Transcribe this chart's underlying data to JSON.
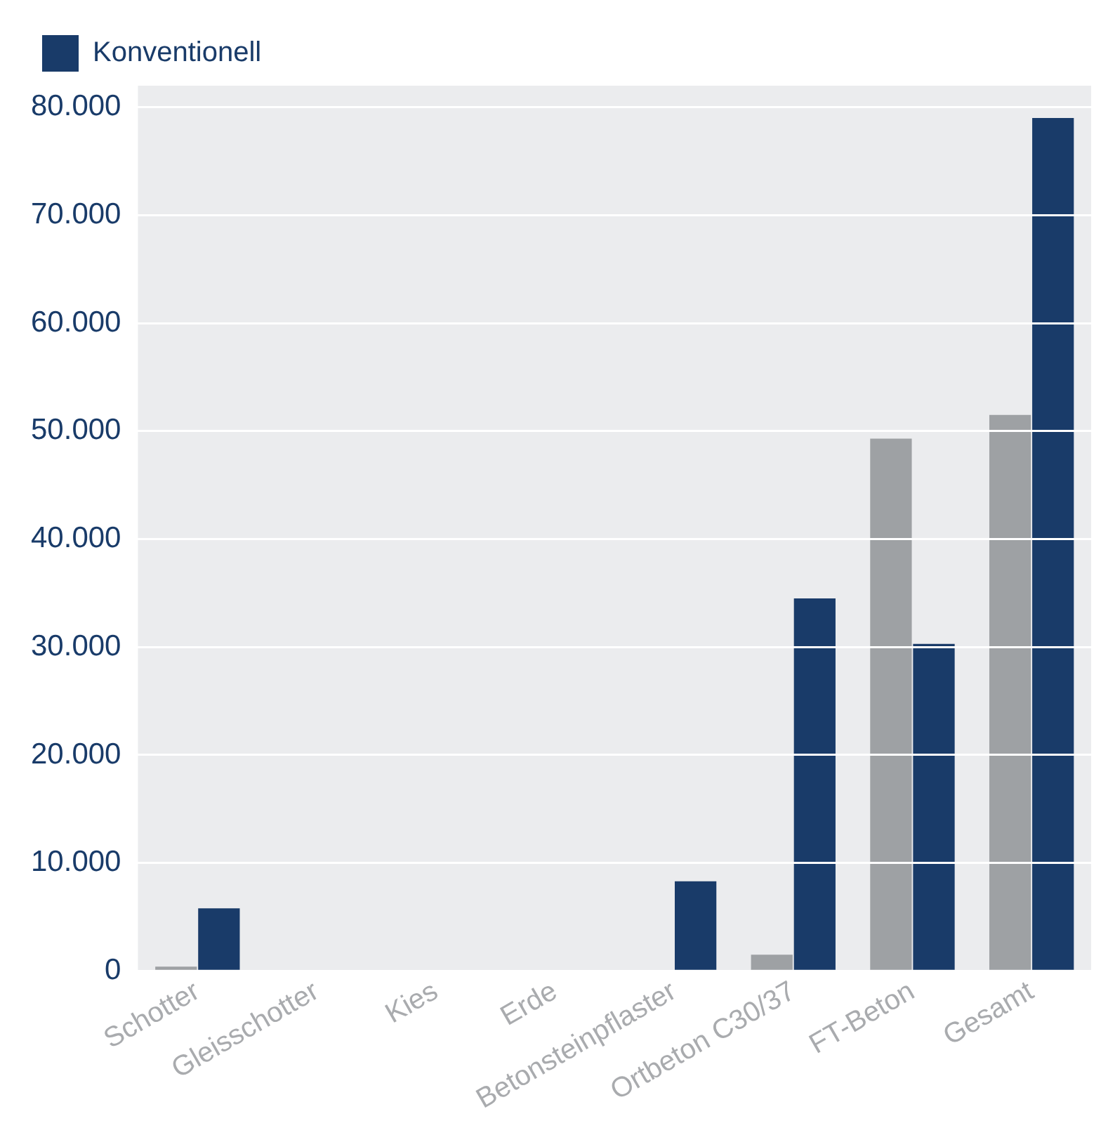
{
  "chart_data": {
    "type": "bar",
    "categories": [
      "Schotter",
      "Gleisschotter",
      "Kies",
      "Erde",
      "Betonsteinpflaster",
      "Ortbeton C30/37",
      "FT-Beton",
      "Gesamt"
    ],
    "series": [
      {
        "color": "#9ea1a4",
        "values": [
          400,
          null,
          null,
          null,
          null,
          1500,
          49300,
          51500
        ]
      },
      {
        "name": "Konventionell",
        "color": "#193b69",
        "values": [
          5800,
          null,
          null,
          null,
          8300,
          34500,
          30300,
          79000
        ]
      }
    ],
    "ylim": [
      0,
      82000
    ],
    "yticks": [
      {
        "value": 0,
        "label": "0"
      },
      {
        "value": 10000,
        "label": "10.000"
      },
      {
        "value": 20000,
        "label": "20.000"
      },
      {
        "value": 30000,
        "label": "30.000"
      },
      {
        "value": 40000,
        "label": "40.000"
      },
      {
        "value": 50000,
        "label": "50.000"
      },
      {
        "value": 60000,
        "label": "60.000"
      },
      {
        "value": 70000,
        "label": "70.000"
      },
      {
        "value": 80000,
        "label": "80.000"
      }
    ],
    "grid": "y",
    "legend": "top left"
  }
}
